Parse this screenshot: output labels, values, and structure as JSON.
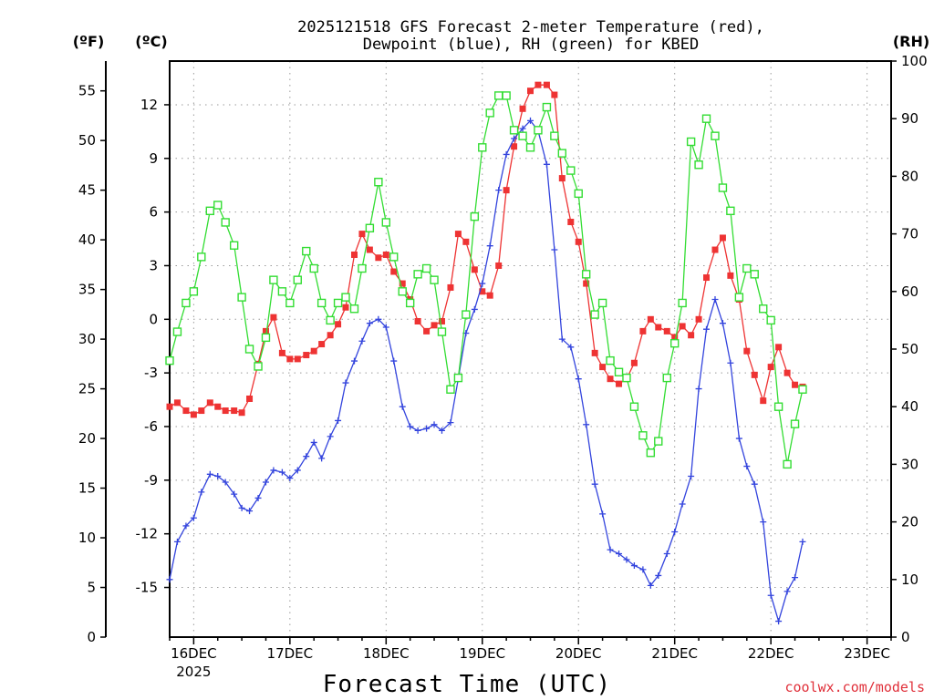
{
  "chart_data": {
    "type": "line",
    "title": "2025121518 GFS Forecast 2-meter Temperature (red),",
    "subtitle": "Dewpoint (blue), RH (green) for KBED",
    "xlabel": "Forecast Time (UTC)",
    "credit": "coolwx.com/models",
    "y_left_outer_label": "(ºF)",
    "y_left_inner_label": "(ºC)",
    "y_right_label": "(RH)",
    "x_range_days": [
      -0.25,
      7.25
    ],
    "x_ticks": [
      {
        "x": 0,
        "label": "16DEC"
      },
      {
        "x": 1,
        "label": "17DEC"
      },
      {
        "x": 2,
        "label": "18DEC"
      },
      {
        "x": 3,
        "label": "19DEC"
      },
      {
        "x": 4,
        "label": "20DEC"
      },
      {
        "x": 5,
        "label": "21DEC"
      },
      {
        "x": 6,
        "label": "22DEC"
      },
      {
        "x": 7,
        "label": "23DEC"
      }
    ],
    "x_year_label": "2025",
    "ylim_f": [
      0,
      58
    ],
    "ylim_c": [
      -17.78,
      14.44
    ],
    "ylim_rh": [
      0,
      100
    ],
    "ticks_f": [
      0,
      5,
      10,
      15,
      20,
      25,
      30,
      35,
      40,
      45,
      50,
      55
    ],
    "ticks_c": [
      -15,
      -12,
      -9,
      -6,
      -3,
      0,
      3,
      6,
      9,
      12
    ],
    "ticks_rh": [
      0,
      10,
      20,
      30,
      40,
      50,
      60,
      70,
      80,
      90,
      100
    ],
    "series": [
      {
        "name": "2-meter Temperature",
        "units": "degF",
        "color": "#ee3333",
        "marker": "filled-square",
        "points": [
          [
            -0.25,
            23.2
          ],
          [
            -0.17,
            23.6
          ],
          [
            -0.08,
            22.8
          ],
          [
            0.0,
            22.4
          ],
          [
            0.08,
            22.8
          ],
          [
            0.17,
            23.6
          ],
          [
            0.25,
            23.2
          ],
          [
            0.33,
            22.8
          ],
          [
            0.42,
            22.8
          ],
          [
            0.5,
            22.6
          ],
          [
            0.58,
            24.0
          ],
          [
            0.67,
            27.5
          ],
          [
            0.75,
            30.8
          ],
          [
            0.83,
            32.2
          ],
          [
            0.92,
            28.6
          ],
          [
            1.0,
            28.0
          ],
          [
            1.08,
            28.0
          ],
          [
            1.17,
            28.4
          ],
          [
            1.25,
            28.8
          ],
          [
            1.33,
            29.5
          ],
          [
            1.42,
            30.4
          ],
          [
            1.5,
            31.5
          ],
          [
            1.58,
            33.2
          ],
          [
            1.67,
            38.5
          ],
          [
            1.75,
            40.6
          ],
          [
            1.83,
            39.0
          ],
          [
            1.92,
            38.2
          ],
          [
            2.0,
            38.5
          ],
          [
            2.08,
            36.8
          ],
          [
            2.17,
            35.6
          ],
          [
            2.25,
            34.0
          ],
          [
            2.33,
            31.8
          ],
          [
            2.42,
            30.8
          ],
          [
            2.5,
            31.4
          ],
          [
            2.58,
            31.8
          ],
          [
            2.67,
            35.2
          ],
          [
            2.75,
            40.6
          ],
          [
            2.83,
            39.8
          ],
          [
            2.92,
            37.0
          ],
          [
            3.0,
            34.8
          ],
          [
            3.08,
            34.4
          ],
          [
            3.17,
            37.4
          ],
          [
            3.25,
            45.0
          ],
          [
            3.33,
            49.4
          ],
          [
            3.42,
            53.2
          ],
          [
            3.5,
            55.0
          ],
          [
            3.58,
            55.6
          ],
          [
            3.67,
            55.6
          ],
          [
            3.75,
            54.6
          ],
          [
            3.83,
            46.2
          ],
          [
            3.92,
            41.8
          ],
          [
            4.0,
            39.8
          ],
          [
            4.08,
            35.6
          ],
          [
            4.17,
            28.6
          ],
          [
            4.25,
            27.2
          ],
          [
            4.33,
            26.0
          ],
          [
            4.42,
            25.5
          ],
          [
            4.5,
            26.0
          ],
          [
            4.58,
            27.6
          ],
          [
            4.67,
            30.8
          ],
          [
            4.75,
            32.0
          ],
          [
            4.83,
            31.2
          ],
          [
            4.92,
            30.8
          ],
          [
            5.0,
            30.2
          ],
          [
            5.08,
            31.3
          ],
          [
            5.17,
            30.4
          ],
          [
            5.25,
            32.0
          ],
          [
            5.33,
            36.2
          ],
          [
            5.42,
            39.0
          ],
          [
            5.5,
            40.2
          ],
          [
            5.58,
            36.4
          ],
          [
            5.67,
            34.0
          ],
          [
            5.75,
            28.8
          ],
          [
            5.83,
            26.4
          ],
          [
            5.92,
            23.8
          ],
          [
            6.0,
            27.2
          ],
          [
            6.08,
            29.2
          ],
          [
            6.17,
            26.6
          ],
          [
            6.25,
            25.4
          ],
          [
            6.33,
            25.2
          ]
        ]
      },
      {
        "name": "Dewpoint",
        "units": "degF",
        "color": "#3344dd",
        "marker": "plus",
        "points": [
          [
            -0.25,
            5.8
          ],
          [
            -0.17,
            9.6
          ],
          [
            -0.08,
            11.2
          ],
          [
            0.0,
            12.0
          ],
          [
            0.08,
            14.6
          ],
          [
            0.17,
            16.4
          ],
          [
            0.25,
            16.2
          ],
          [
            0.33,
            15.6
          ],
          [
            0.42,
            14.4
          ],
          [
            0.5,
            13.0
          ],
          [
            0.58,
            12.7
          ],
          [
            0.67,
            14.0
          ],
          [
            0.75,
            15.6
          ],
          [
            0.83,
            16.8
          ],
          [
            0.92,
            16.6
          ],
          [
            1.0,
            16.0
          ],
          [
            1.08,
            16.8
          ],
          [
            1.17,
            18.2
          ],
          [
            1.25,
            19.6
          ],
          [
            1.33,
            18.0
          ],
          [
            1.42,
            20.2
          ],
          [
            1.5,
            21.8
          ],
          [
            1.58,
            25.6
          ],
          [
            1.67,
            27.8
          ],
          [
            1.75,
            29.8
          ],
          [
            1.83,
            31.6
          ],
          [
            1.92,
            32.0
          ],
          [
            2.0,
            31.2
          ],
          [
            2.08,
            27.8
          ],
          [
            2.17,
            23.2
          ],
          [
            2.25,
            21.2
          ],
          [
            2.33,
            20.8
          ],
          [
            2.42,
            21.0
          ],
          [
            2.5,
            21.4
          ],
          [
            2.58,
            20.8
          ],
          [
            2.67,
            21.6
          ],
          [
            2.75,
            26.0
          ],
          [
            2.83,
            30.6
          ],
          [
            2.92,
            33.0
          ],
          [
            3.0,
            35.6
          ],
          [
            3.08,
            39.4
          ],
          [
            3.17,
            45.0
          ],
          [
            3.25,
            48.6
          ],
          [
            3.33,
            50.2
          ],
          [
            3.42,
            51.2
          ],
          [
            3.5,
            52.0
          ],
          [
            3.58,
            51.0
          ],
          [
            3.67,
            47.6
          ],
          [
            3.75,
            39.0
          ],
          [
            3.83,
            30.0
          ],
          [
            3.92,
            29.2
          ],
          [
            4.0,
            26.0
          ],
          [
            4.08,
            21.4
          ],
          [
            4.17,
            15.4
          ],
          [
            4.25,
            12.4
          ],
          [
            4.33,
            8.8
          ],
          [
            4.42,
            8.4
          ],
          [
            4.5,
            7.8
          ],
          [
            4.58,
            7.2
          ],
          [
            4.67,
            6.8
          ],
          [
            4.75,
            5.2
          ],
          [
            4.83,
            6.2
          ],
          [
            4.92,
            8.4
          ],
          [
            5.0,
            10.6
          ],
          [
            5.08,
            13.4
          ],
          [
            5.17,
            16.2
          ],
          [
            5.25,
            25.0
          ],
          [
            5.33,
            31.0
          ],
          [
            5.42,
            34.0
          ],
          [
            5.5,
            31.6
          ],
          [
            5.58,
            27.6
          ],
          [
            5.67,
            20.0
          ],
          [
            5.75,
            17.2
          ],
          [
            5.83,
            15.4
          ],
          [
            5.92,
            11.6
          ],
          [
            6.0,
            4.2
          ],
          [
            6.08,
            1.6
          ],
          [
            6.17,
            4.6
          ],
          [
            6.25,
            6.0
          ],
          [
            6.33,
            9.6
          ]
        ]
      },
      {
        "name": "RH",
        "units": "percent",
        "color": "#33dd33",
        "marker": "open-square",
        "points": [
          [
            -0.25,
            48
          ],
          [
            -0.17,
            53
          ],
          [
            -0.08,
            58
          ],
          [
            0.0,
            60
          ],
          [
            0.08,
            66
          ],
          [
            0.17,
            74
          ],
          [
            0.25,
            75
          ],
          [
            0.33,
            72
          ],
          [
            0.42,
            68
          ],
          [
            0.5,
            59
          ],
          [
            0.58,
            50
          ],
          [
            0.67,
            47
          ],
          [
            0.75,
            52
          ],
          [
            0.83,
            62
          ],
          [
            0.92,
            60
          ],
          [
            1.0,
            58
          ],
          [
            1.08,
            62
          ],
          [
            1.17,
            67
          ],
          [
            1.25,
            64
          ],
          [
            1.33,
            58
          ],
          [
            1.42,
            55
          ],
          [
            1.5,
            58
          ],
          [
            1.58,
            59
          ],
          [
            1.67,
            57
          ],
          [
            1.75,
            64
          ],
          [
            1.83,
            71
          ],
          [
            1.92,
            79
          ],
          [
            2.0,
            72
          ],
          [
            2.08,
            66
          ],
          [
            2.17,
            60
          ],
          [
            2.25,
            58
          ],
          [
            2.33,
            63
          ],
          [
            2.42,
            64
          ],
          [
            2.5,
            62
          ],
          [
            2.58,
            53
          ],
          [
            2.67,
            43
          ],
          [
            2.75,
            45
          ],
          [
            2.83,
            56
          ],
          [
            2.92,
            73
          ],
          [
            3.0,
            85
          ],
          [
            3.08,
            91
          ],
          [
            3.17,
            94
          ],
          [
            3.25,
            94
          ],
          [
            3.33,
            88
          ],
          [
            3.42,
            87
          ],
          [
            3.5,
            85
          ],
          [
            3.58,
            88
          ],
          [
            3.67,
            92
          ],
          [
            3.75,
            87
          ],
          [
            3.83,
            84
          ],
          [
            3.92,
            81
          ],
          [
            4.0,
            77
          ],
          [
            4.08,
            63
          ],
          [
            4.17,
            56
          ],
          [
            4.25,
            58
          ],
          [
            4.33,
            48
          ],
          [
            4.42,
            46
          ],
          [
            4.5,
            45
          ],
          [
            4.58,
            40
          ],
          [
            4.67,
            35
          ],
          [
            4.75,
            32
          ],
          [
            4.83,
            34
          ],
          [
            4.92,
            45
          ],
          [
            5.0,
            51
          ],
          [
            5.08,
            58
          ],
          [
            5.17,
            86
          ],
          [
            5.25,
            82
          ],
          [
            5.33,
            90
          ],
          [
            5.42,
            87
          ],
          [
            5.5,
            78
          ],
          [
            5.58,
            74
          ],
          [
            5.67,
            59
          ],
          [
            5.75,
            64
          ],
          [
            5.83,
            63
          ],
          [
            5.92,
            57
          ],
          [
            6.0,
            55
          ],
          [
            6.08,
            40
          ],
          [
            6.17,
            30
          ],
          [
            6.25,
            37
          ],
          [
            6.33,
            43
          ]
        ]
      }
    ]
  }
}
